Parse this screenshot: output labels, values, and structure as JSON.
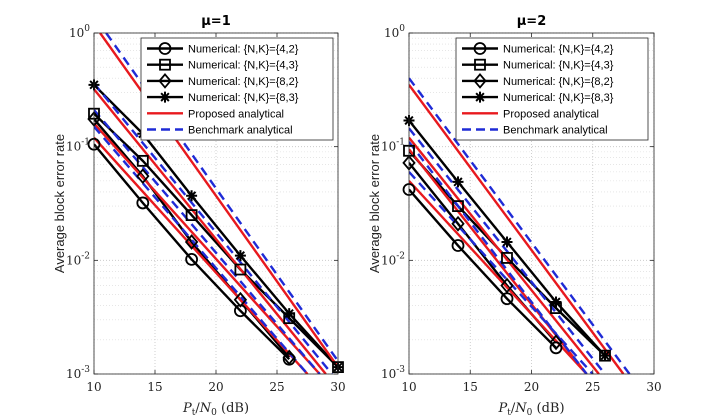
{
  "chart_data": [
    {
      "type": "line",
      "title": "μ=1",
      "xlabel": "Pt/N0 (dB)",
      "ylabel": "Average block error rate",
      "xlim": [
        10,
        30
      ],
      "ylim": [
        0.001,
        1
      ],
      "yscale": "log",
      "grid": true,
      "legend_position": "top-right",
      "xticks": [
        "10",
        "15",
        "20",
        "25",
        "30"
      ],
      "yticks": [
        "10-3",
        "10-2",
        "10-1",
        "100"
      ],
      "series": [
        {
          "name": "Numerical: {N,K}={4,2}",
          "style": "numerical",
          "marker": "circle",
          "x": [
            10,
            14,
            18,
            22,
            26
          ],
          "y": [
            0.105,
            0.032,
            0.0102,
            0.0036,
            0.00135
          ]
        },
        {
          "name": "Numerical: {N,K}={4,3}",
          "style": "numerical",
          "marker": "square",
          "x": [
            10,
            14,
            18,
            22,
            26,
            30
          ],
          "y": [
            0.195,
            0.075,
            0.025,
            0.0083,
            0.0031,
            0.00115
          ]
        },
        {
          "name": "Numerical: {N,K}={8,2}",
          "style": "numerical",
          "marker": "diamond",
          "x": [
            10,
            14,
            18,
            22,
            26
          ],
          "y": [
            0.175,
            0.055,
            0.0145,
            0.0045,
            0.0014
          ]
        },
        {
          "name": "Numerical: {N,K}={8,3}",
          "style": "numerical",
          "marker": "asterisk",
          "x": [
            10,
            14,
            18,
            22,
            26,
            30
          ],
          "y": [
            0.35,
            0.13,
            0.037,
            0.011,
            0.0034,
            0.00115
          ]
        },
        {
          "name": "Proposed analytical",
          "style": "proposed",
          "lines": [
            {
              "x": [
                10,
                29
              ],
              "y": [
                0.32,
                0.001
              ]
            },
            {
              "x": [
                10.5,
                30
              ],
              "y": [
                1.0,
                0.00115
              ]
            },
            {
              "x": [
                10,
                28.5
              ],
              "y": [
                0.16,
                0.001
              ]
            },
            {
              "x": [
                10,
                27.5
              ],
              "y": [
                0.12,
                0.001
              ]
            }
          ]
        },
        {
          "name": "Benchmark analytical",
          "style": "benchmark",
          "lines": [
            {
              "x": [
                10,
                29.5
              ],
              "y": [
                0.36,
                0.001
              ]
            },
            {
              "x": [
                11,
                30
              ],
              "y": [
                1.0,
                0.0013
              ]
            },
            {
              "x": [
                10,
                28.5
              ],
              "y": [
                0.21,
                0.001
              ]
            },
            {
              "x": [
                10,
                27.5
              ],
              "y": [
                0.15,
                0.001
              ]
            }
          ]
        }
      ]
    },
    {
      "type": "line",
      "title": "μ=2",
      "xlabel": "Pt/N0 (dB)",
      "ylabel": "Average block error rate",
      "xlim": [
        10,
        30
      ],
      "ylim": [
        0.001,
        1
      ],
      "yscale": "log",
      "grid": true,
      "legend_position": "top-right",
      "xticks": [
        "10",
        "15",
        "20",
        "25",
        "30"
      ],
      "yticks": [
        "10-3",
        "10-2",
        "10-1",
        "100"
      ],
      "series": [
        {
          "name": "Numerical: {N,K}={4,2}",
          "style": "numerical",
          "marker": "circle",
          "x": [
            10,
            14,
            18,
            22
          ],
          "y": [
            0.042,
            0.0135,
            0.0046,
            0.0017
          ]
        },
        {
          "name": "Numerical: {N,K}={4,3}",
          "style": "numerical",
          "marker": "square",
          "x": [
            10,
            14,
            18,
            22,
            26
          ],
          "y": [
            0.092,
            0.03,
            0.0105,
            0.0038,
            0.00145
          ]
        },
        {
          "name": "Numerical: {N,K}={8,2}",
          "style": "numerical",
          "marker": "diamond",
          "x": [
            10,
            14,
            18,
            22
          ],
          "y": [
            0.072,
            0.021,
            0.006,
            0.0019
          ]
        },
        {
          "name": "Numerical: {N,K}={8,3}",
          "style": "numerical",
          "marker": "asterisk",
          "x": [
            10,
            14,
            18,
            22,
            26
          ],
          "y": [
            0.17,
            0.049,
            0.0145,
            0.0043,
            0.00145
          ]
        },
        {
          "name": "Proposed analytical",
          "style": "proposed",
          "lines": [
            {
              "x": [
                10,
                27.5
              ],
              "y": [
                0.35,
                0.001
              ]
            },
            {
              "x": [
                10,
                25.5
              ],
              "y": [
                0.12,
                0.001
              ]
            },
            {
              "x": [
                10,
                24.5
              ],
              "y": [
                0.05,
                0.001
              ]
            },
            {
              "x": [
                10,
                24.5
              ],
              "y": [
                0.095,
                0.001
              ]
            }
          ]
        },
        {
          "name": "Benchmark analytical",
          "style": "benchmark",
          "lines": [
            {
              "x": [
                10,
                28
              ],
              "y": [
                0.4,
                0.001
              ]
            },
            {
              "x": [
                10,
                26
              ],
              "y": [
                0.145,
                0.001
              ]
            },
            {
              "x": [
                10,
                25
              ],
              "y": [
                0.06,
                0.001
              ]
            },
            {
              "x": [
                10,
                24.5
              ],
              "y": [
                0.11,
                0.001
              ]
            }
          ]
        }
      ]
    }
  ]
}
